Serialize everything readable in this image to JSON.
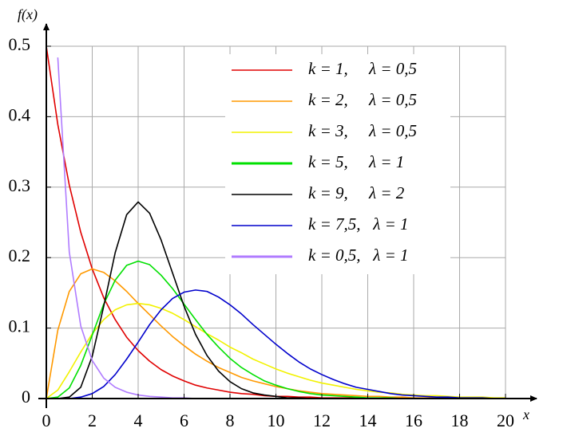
{
  "chart_data": {
    "type": "line",
    "ylabel": "f(x)",
    "xlabel": "x",
    "x": [
      0,
      0.5,
      1,
      1.5,
      2,
      2.5,
      3,
      3.5,
      4,
      4.5,
      5,
      5.5,
      6,
      6.5,
      7,
      7.5,
      8,
      8.5,
      9,
      9.5,
      10,
      10.5,
      11,
      11.5,
      12,
      12.5,
      13,
      13.5,
      14,
      14.5,
      15,
      15.5,
      16,
      16.5,
      17,
      17.5,
      18,
      18.5,
      19,
      19.5,
      20
    ],
    "xlim": [
      0,
      20
    ],
    "xticks": [
      0,
      2,
      4,
      6,
      8,
      10,
      12,
      14,
      16,
      18,
      20
    ],
    "ylim": [
      0,
      0.5
    ],
    "yticks": [
      0,
      0.1,
      0.2,
      0.3,
      0.4,
      0.5
    ],
    "grid": true,
    "legend": "upper right",
    "series": [
      {
        "name": "k = 1,     λ = 0,5",
        "color": "#e00000",
        "values": [
          0.5,
          0.389,
          0.303,
          0.236,
          0.184,
          0.143,
          0.112,
          0.087,
          0.068,
          0.053,
          0.041,
          0.032,
          0.025,
          0.019,
          0.015,
          0.012,
          0.009,
          0.007,
          0.006,
          0.004,
          0.003,
          0.003,
          0.002,
          0.002,
          0.001,
          0.001,
          0.001,
          0.001,
          0,
          0,
          0,
          0,
          0,
          0,
          0,
          0,
          0,
          0,
          0,
          0,
          0
        ]
      },
      {
        "name": "k = 2,     λ = 0,5",
        "color": "#ff9900",
        "values": [
          0,
          0.097,
          0.152,
          0.177,
          0.184,
          0.179,
          0.167,
          0.152,
          0.135,
          0.119,
          0.103,
          0.088,
          0.075,
          0.063,
          0.053,
          0.044,
          0.037,
          0.03,
          0.025,
          0.021,
          0.017,
          0.014,
          0.011,
          0.009,
          0.007,
          0.006,
          0.005,
          0.004,
          0.003,
          0.003,
          0.002,
          0.002,
          0.001,
          0.001,
          0.001,
          0.001,
          0.001,
          0,
          0,
          0,
          0
        ]
      },
      {
        "name": "k = 3,     λ = 0,5",
        "color": "#f2f200",
        "values": [
          0,
          0.012,
          0.038,
          0.066,
          0.092,
          0.112,
          0.126,
          0.133,
          0.135,
          0.133,
          0.128,
          0.121,
          0.112,
          0.102,
          0.092,
          0.083,
          0.073,
          0.065,
          0.056,
          0.049,
          0.042,
          0.036,
          0.031,
          0.026,
          0.022,
          0.019,
          0.016,
          0.013,
          0.011,
          0.009,
          0.008,
          0.006,
          0.005,
          0.004,
          0.004,
          0.003,
          0.002,
          0.002,
          0.002,
          0.001,
          0.001
        ]
      },
      {
        "name": "k = 5,     λ = 1",
        "color": "#00e000",
        "values": [
          0,
          0.002,
          0.015,
          0.047,
          0.09,
          0.134,
          0.168,
          0.189,
          0.195,
          0.19,
          0.175,
          0.156,
          0.134,
          0.112,
          0.091,
          0.073,
          0.057,
          0.044,
          0.034,
          0.025,
          0.019,
          0.014,
          0.01,
          0.007,
          0.005,
          0.004,
          0.003,
          0.002,
          0.001,
          0.001,
          0.001,
          0,
          0,
          0,
          0,
          0,
          0,
          0,
          0,
          0,
          0
        ]
      },
      {
        "name": "k = 9,     λ = 2",
        "color": "#000000",
        "values": [
          0,
          0,
          0.002,
          0.016,
          0.06,
          0.131,
          0.207,
          0.261,
          0.279,
          0.263,
          0.225,
          0.178,
          0.131,
          0.091,
          0.061,
          0.039,
          0.024,
          0.014,
          0.008,
          0.005,
          0.003,
          0.001,
          0.001,
          0,
          0,
          0,
          0,
          0,
          0,
          0,
          0,
          0,
          0,
          0,
          0,
          0,
          0,
          0,
          0,
          0,
          0
        ]
      },
      {
        "name": "k = 7,5,   λ = 1",
        "color": "#0000cc",
        "values": [
          0,
          0,
          0,
          0.002,
          0.007,
          0.017,
          0.034,
          0.056,
          0.08,
          0.105,
          0.126,
          0.142,
          0.151,
          0.154,
          0.152,
          0.144,
          0.133,
          0.12,
          0.105,
          0.091,
          0.077,
          0.064,
          0.052,
          0.042,
          0.034,
          0.027,
          0.021,
          0.016,
          0.013,
          0.01,
          0.007,
          0.005,
          0.004,
          0.003,
          0.002,
          0.002,
          0.001,
          0.001,
          0.001,
          0,
          0
        ]
      },
      {
        "name": "k = 0,5,   λ = 1",
        "color": "#b07cff",
        "values": [
          null,
          0.484,
          0.208,
          0.103,
          0.054,
          0.029,
          0.016,
          0.009,
          0.005,
          0.003,
          0.002,
          0.001,
          0.001,
          0,
          0,
          0,
          0,
          0,
          0,
          0,
          0,
          0,
          0,
          0,
          0,
          0,
          0,
          0,
          0,
          0,
          0,
          0,
          0,
          0,
          0,
          0,
          0,
          0,
          0,
          0,
          0
        ]
      }
    ]
  }
}
